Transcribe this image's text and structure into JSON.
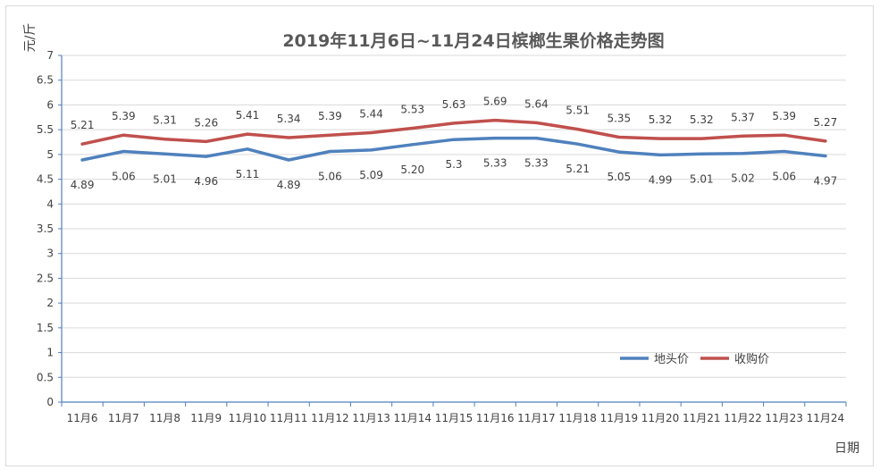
{
  "chart_data": {
    "type": "line",
    "title": "2019年11月6日~11月24日槟榔生果价格走势图",
    "xlabel": "日期",
    "ylabel": "元/斤",
    "ylim": [
      0,
      7
    ],
    "ytick_labels": [
      "0",
      "0.5",
      "1",
      "1.5",
      "2",
      "2.5",
      "3",
      "3.5",
      "4",
      "4.5",
      "5",
      "5.5",
      "6",
      "6.5",
      "7"
    ],
    "grid": true,
    "legend_position": "bottom-right",
    "categories": [
      "11月6",
      "11月7",
      "11月8",
      "11月9",
      "11月10",
      "11月11",
      "11月12",
      "11月13",
      "11月14",
      "11月15",
      "11月16",
      "11月17",
      "11月18",
      "11月19",
      "11月20",
      "11月21",
      "11月22",
      "11月23",
      "11月24"
    ],
    "series": [
      {
        "name": "地头价",
        "color": "#4f81bd",
        "values": [
          4.89,
          5.06,
          5.01,
          4.96,
          5.11,
          4.89,
          5.06,
          5.09,
          5.2,
          5.3,
          5.33,
          5.33,
          5.21,
          5.05,
          4.99,
          5.01,
          5.02,
          5.06,
          4.97
        ],
        "labels": [
          "4.89",
          "5.06",
          "5.01",
          "4.96",
          "5.11",
          "4.89",
          "5.06",
          "5.09",
          "5.20",
          "5.3",
          "5.33",
          "5.33",
          "5.21",
          "5.05",
          "4.99",
          "5.01",
          "5.02",
          "5.06",
          "4.97"
        ]
      },
      {
        "name": "收购价",
        "color": "#c0504d",
        "values": [
          5.21,
          5.39,
          5.31,
          5.26,
          5.41,
          5.34,
          5.39,
          5.44,
          5.53,
          5.63,
          5.69,
          5.64,
          5.51,
          5.35,
          5.32,
          5.32,
          5.37,
          5.39,
          5.27
        ],
        "labels": [
          "5.21",
          "5.39",
          "5.31",
          "5.26",
          "5.41",
          "5.34",
          "5.39",
          "5.44",
          "5.53",
          "5.63",
          "5.69",
          "5.64",
          "5.51",
          "5.35",
          "5.32",
          "5.32",
          "5.37",
          "5.39",
          "5.27"
        ]
      }
    ]
  }
}
